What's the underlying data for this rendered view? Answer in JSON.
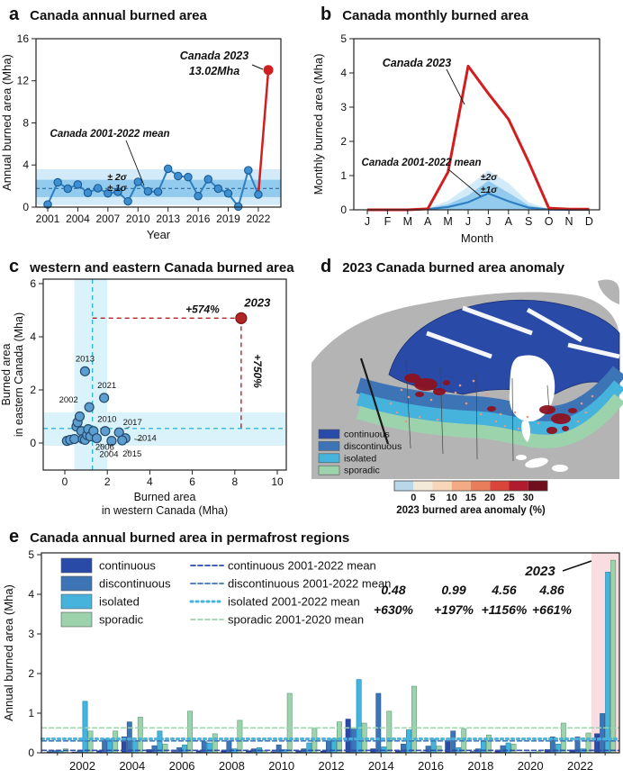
{
  "colors": {
    "blue_line": "#2e7fc2",
    "blue_marker": "#3d8fd1",
    "blue_marker_edge": "#1a5a94",
    "band_1sigma": "#93cbee",
    "band_2sigma": "#d3eaf8",
    "mean_line": "#1f5f8f",
    "sigma_label": "#2f7cb5",
    "red": "#d11f1f",
    "dark_red": "#b02525",
    "scatter_fill": "#5b9ecf",
    "scatter_edge": "#27496d",
    "teal_dash": "#35b8d8",
    "cyan_band": "#daf2f9",
    "continuous": "#2a4aa8",
    "discontinuous": "#3d74b5",
    "isolated": "#45b3dc",
    "sporadic": "#9cd3ad",
    "cont_edge": "#1d3a7a",
    "disc_edge": "#225a8f",
    "iso_edge": "#1f86ad",
    "spor_edge": "#5d9b72",
    "land_gray": "#b4b4b4",
    "burn_red": "#8c1220",
    "burn_dot": "#df9b84",
    "pink_highlight": "#fadde0",
    "colorbar": [
      "#b9d7e8",
      "#f4ead9",
      "#f7d6ba",
      "#f2ab84",
      "#e87d5c",
      "#d9453a",
      "#b01c2e",
      "#70101f"
    ]
  },
  "panels": {
    "a": {
      "tag": "a",
      "title": "Canada annual burned area"
    },
    "b": {
      "tag": "b",
      "title": "Canada monthly burned area"
    },
    "c": {
      "tag": "c",
      "title": "western and eastern Canada burned area"
    },
    "d": {
      "tag": "d",
      "title": "2023 Canada burned area anomaly"
    },
    "e": {
      "tag": "e",
      "title": "Canada annual burned area in permafrost regions"
    }
  },
  "chart_data": [
    {
      "id": "a",
      "type": "line",
      "title": "Canada annual burned area",
      "xlabel": "Year",
      "ylabel": "Annual burned area (Mha)",
      "ylim": [
        0,
        16
      ],
      "yticks": [
        0,
        4,
        8,
        12,
        16
      ],
      "xticks": [
        2001,
        2004,
        2007,
        2010,
        2013,
        2016,
        2019,
        2022
      ],
      "years": [
        2001,
        2002,
        2003,
        2004,
        2005,
        2006,
        2007,
        2008,
        2009,
        2010,
        2011,
        2012,
        2013,
        2014,
        2015,
        2016,
        2017,
        2018,
        2019,
        2020,
        2021,
        2022
      ],
      "values": [
        0.25,
        2.35,
        1.75,
        2.15,
        1.35,
        1.8,
        1.3,
        1.45,
        0.55,
        2.4,
        1.5,
        1.45,
        3.65,
        2.95,
        2.85,
        1.05,
        2.65,
        1.75,
        1.3,
        0.05,
        3.5,
        1.2
      ],
      "mean": 1.78,
      "sigma1": [
        0.95,
        2.6
      ],
      "sigma2": [
        0.2,
        3.6
      ],
      "highlight": {
        "year": 2023,
        "value": 13.02,
        "label": "Canada 2023",
        "sublabel": "13.02Mha"
      },
      "mean_label": "Canada 2001-2022 mean",
      "sigma_labels": [
        "± 2σ",
        "± 1σ"
      ]
    },
    {
      "id": "b",
      "type": "line",
      "title": "Canada monthly burned area",
      "xlabel": "Month",
      "ylabel": "Monthly burned area (Mha)",
      "ylim": [
        0,
        5
      ],
      "yticks": [
        0,
        1,
        2,
        3,
        4,
        5
      ],
      "months": [
        "J",
        "F",
        "M",
        "A",
        "M",
        "J",
        "J",
        "A",
        "S",
        "O",
        "N",
        "D"
      ],
      "series": [
        {
          "name": "Canada 2023",
          "color_key": "red",
          "values": [
            0,
            0,
            0,
            0.03,
            1.1,
            4.2,
            3.4,
            2.65,
            1.4,
            0.05,
            0.02,
            0.02
          ]
        },
        {
          "name": "Canada 2001-2022 mean",
          "color_key": "blue_line",
          "values": [
            0,
            0,
            0,
            0.02,
            0.08,
            0.22,
            0.48,
            0.25,
            0.06,
            0.01,
            0,
            0
          ]
        }
      ],
      "sigma1_upper": [
        0,
        0,
        0,
        0.04,
        0.16,
        0.42,
        0.85,
        0.5,
        0.13,
        0.02,
        0,
        0
      ],
      "sigma2_upper": [
        0,
        0,
        0,
        0.06,
        0.26,
        0.68,
        1.15,
        0.78,
        0.22,
        0.03,
        0,
        0
      ],
      "sigma_labels": [
        "±2σ",
        "±1σ"
      ]
    },
    {
      "id": "c",
      "type": "scatter",
      "title": "western and eastern Canada burned area",
      "xlabel_lines": [
        "Burned area",
        "in western Canada (Mha)"
      ],
      "ylabel_lines": [
        "Burned area",
        "in eastern Canada (Mha)"
      ],
      "xlim": [
        0,
        10
      ],
      "ylim": [
        0,
        6
      ],
      "xticks": [
        0,
        2,
        4,
        6,
        8,
        10
      ],
      "yticks": [
        0,
        2,
        4,
        6
      ],
      "points": [
        {
          "x": 0.1,
          "y": 0.08
        },
        {
          "x": 0.25,
          "y": 0.12
        },
        {
          "x": 0.45,
          "y": 0.15
        },
        {
          "x": 0.55,
          "y": 0.62
        },
        {
          "x": 0.6,
          "y": 0.78
        },
        {
          "x": 0.7,
          "y": 1.0
        },
        {
          "x": 0.78,
          "y": 0.45
        },
        {
          "x": 0.85,
          "y": 0.15
        },
        {
          "x": 0.95,
          "y": 0.12
        },
        {
          "x": 1.05,
          "y": 0.3
        },
        {
          "x": 1.1,
          "y": 0.52
        },
        {
          "x": 1.2,
          "y": 0.25
        },
        {
          "x": 1.35,
          "y": 0.45
        },
        {
          "x": 0.95,
          "y": 2.7,
          "label": "2013"
        },
        {
          "x": 1.85,
          "y": 1.7,
          "label": "2021"
        },
        {
          "x": 1.15,
          "y": 1.35,
          "label": "2002"
        },
        {
          "x": 1.9,
          "y": 0.45,
          "label": "2010"
        },
        {
          "x": 2.55,
          "y": 0.4,
          "label": "2017"
        },
        {
          "x": 1.5,
          "y": 0.18,
          "label": "2006"
        },
        {
          "x": 2.85,
          "y": 0.18,
          "label": "2014"
        },
        {
          "x": 2.2,
          "y": 0.08,
          "label": "2004"
        },
        {
          "x": 2.7,
          "y": 0.1,
          "label": "2015"
        }
      ],
      "point_2023": {
        "x": 8.3,
        "y": 4.7,
        "label": "2023",
        "h_annotation": "+574%",
        "v_annotation": "+750%"
      },
      "mean_x": 1.3,
      "mean_y": 0.55,
      "band_x": [
        0.45,
        2.0
      ],
      "band_y": [
        -0.1,
        1.15
      ]
    },
    {
      "id": "d",
      "type": "map",
      "title": "2023 Canada burned area anomaly",
      "legend": [
        {
          "label": "continuous",
          "color_key": "continuous"
        },
        {
          "label": "discontinuous",
          "color_key": "discontinuous"
        },
        {
          "label": "isolated",
          "color_key": "isolated"
        },
        {
          "label": "sporadic",
          "color_key": "sporadic"
        }
      ],
      "colorbar": {
        "ticks": [
          0,
          5,
          10,
          15,
          20,
          25,
          30
        ],
        "label": "2023 burned area anomaly (%)"
      }
    },
    {
      "id": "e",
      "type": "bar",
      "title": "Canada annual burned area in permafrost regions",
      "ylabel": "Annual burned area (Mha)",
      "ylim": [
        0,
        5
      ],
      "yticks": [
        0,
        1,
        2,
        3,
        4,
        5
      ],
      "years": [
        2001,
        2002,
        2003,
        2004,
        2005,
        2006,
        2007,
        2008,
        2009,
        2010,
        2011,
        2012,
        2013,
        2014,
        2015,
        2016,
        2017,
        2018,
        2019,
        2020,
        2021,
        2022,
        2023
      ],
      "xticks": [
        2002,
        2004,
        2006,
        2008,
        2010,
        2012,
        2014,
        2016,
        2018,
        2020,
        2022
      ],
      "series": [
        {
          "name": "continuous",
          "color_key": "continuous",
          "mean": 0.06,
          "mean_label": "continuous 2001-2022 mean",
          "values": [
            0.03,
            0.02,
            0.05,
            0.4,
            0.08,
            0.03,
            0.05,
            0.04,
            0.05,
            0.03,
            0.05,
            0.04,
            0.85,
            0.1,
            0.05,
            0.02,
            0.3,
            0.03,
            0.04,
            0.01,
            0.08,
            0.07,
            0.48
          ]
        },
        {
          "name": "discontinuous",
          "color_key": "discontinuous",
          "mean": 0.3,
          "mean_label": "discontinuous 2001-2022 mean",
          "values": [
            0.05,
            0.05,
            0.35,
            0.78,
            0.18,
            0.13,
            0.28,
            0.3,
            0.1,
            0.2,
            0.1,
            0.3,
            0.6,
            1.5,
            0.22,
            0.17,
            0.55,
            0.1,
            0.18,
            0.02,
            0.4,
            0.4,
            0.99
          ]
        },
        {
          "name": "isolated",
          "color_key": "isolated",
          "mean": 0.35,
          "mean_label": "isolated 2001-2022 mean",
          "values": [
            0.04,
            1.3,
            0.35,
            0.3,
            0.55,
            0.2,
            0.25,
            0.1,
            0.13,
            0.08,
            0.25,
            0.35,
            1.85,
            0.15,
            0.58,
            0.35,
            0.13,
            0.28,
            0.25,
            0.02,
            0.22,
            0.1,
            4.56
          ]
        },
        {
          "name": "sporadic",
          "color_key": "sporadic",
          "mean": 0.63,
          "mean_label": "sporadic 2001-2020 mean",
          "values": [
            0.1,
            0.55,
            0.55,
            0.9,
            0.22,
            1.05,
            0.48,
            0.82,
            0.05,
            1.5,
            0.62,
            0.78,
            0.75,
            1.05,
            1.68,
            0.17,
            0.6,
            0.45,
            0.22,
            0.03,
            0.75,
            0.5,
            4.86
          ]
        }
      ],
      "annotations_2023": [
        {
          "value": "0.48",
          "pct": "+630%",
          "color_key": "continuous"
        },
        {
          "value": "0.99",
          "pct": "+197%",
          "color_key": "discontinuous"
        },
        {
          "value": "4.56",
          "pct": "+1156%",
          "color_key": "isolated"
        },
        {
          "value": "4.86",
          "pct": "+661%",
          "color_key": "sporadic"
        }
      ],
      "highlight_label": "2023"
    }
  ]
}
